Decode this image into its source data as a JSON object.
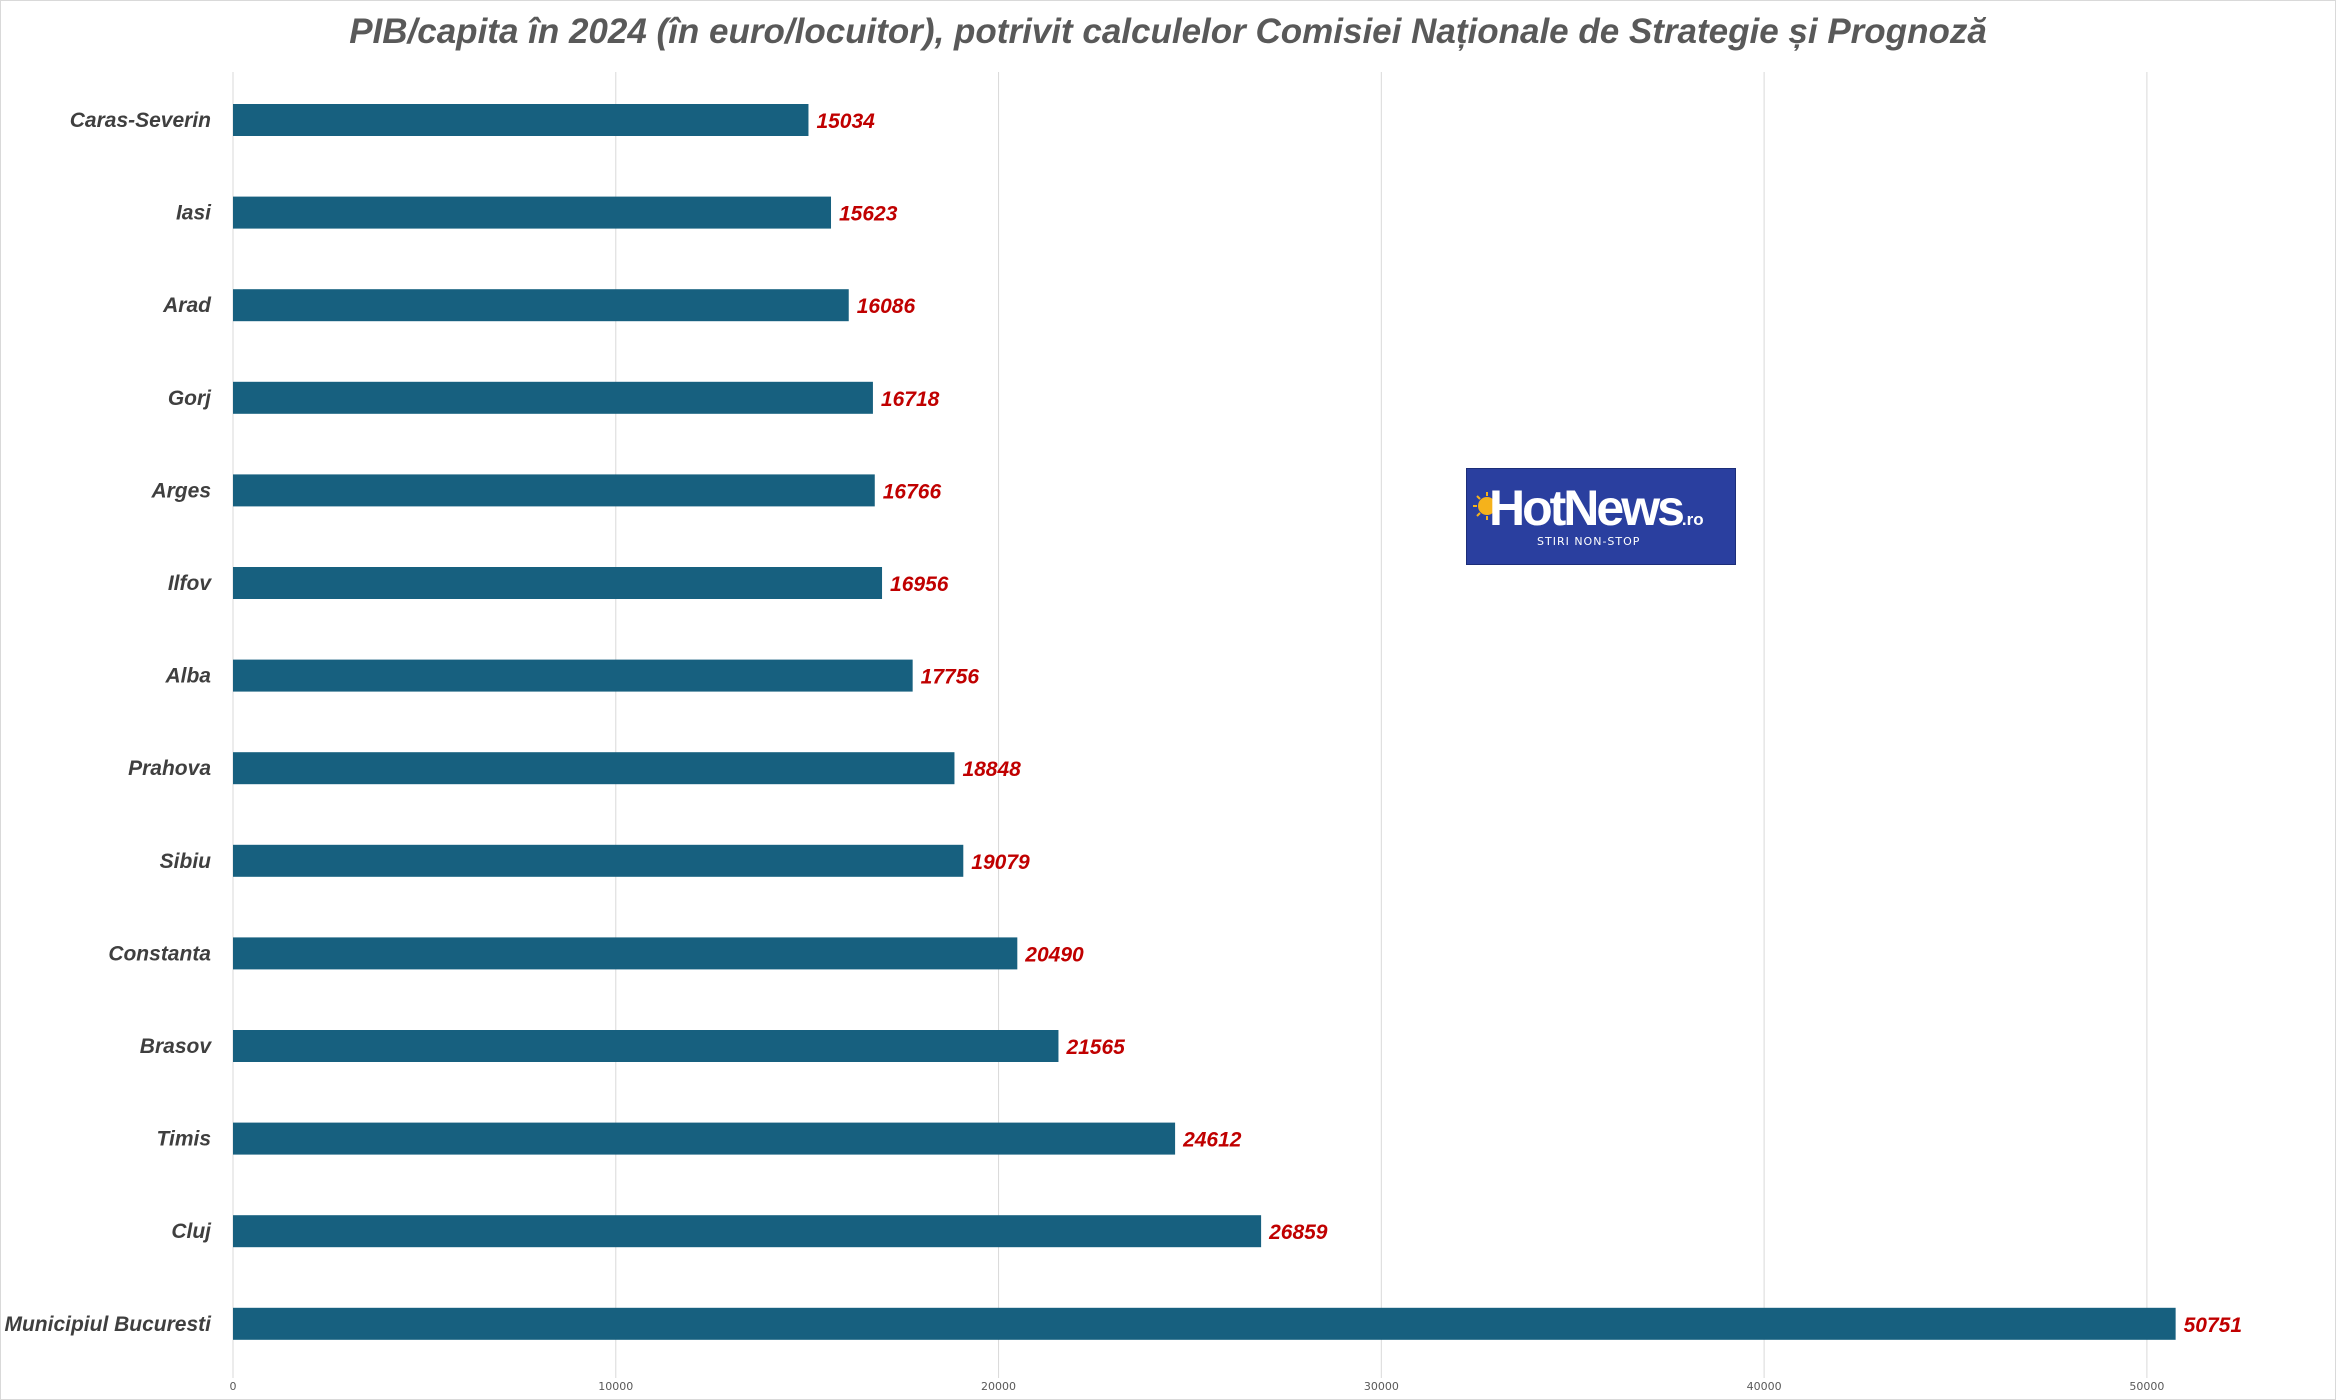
{
  "chart_data": {
    "type": "bar",
    "orientation": "horizontal",
    "title": "PIB/capita în 2024 (în euro/locuitor), potrivit calculelor Comisiei Naționale de Strategie și Prognoză",
    "xlabel": "",
    "ylabel": "",
    "categories": [
      "Caras-Severin",
      "Iasi",
      "Arad",
      "Gorj",
      "Arges",
      "Ilfov",
      "Alba",
      "Prahova",
      "Sibiu",
      "Constanta",
      "Brasov",
      "Timis",
      "Cluj",
      "Municipiul Bucuresti"
    ],
    "values": [
      15034,
      15623,
      16086,
      16718,
      16766,
      16956,
      17756,
      18848,
      19079,
      20490,
      21565,
      24612,
      26859,
      50751
    ],
    "value_labels": [
      "15034",
      "15623",
      "16086",
      "16718",
      "16766",
      "16956",
      "17756",
      "18848",
      "19079",
      "20490",
      "21565",
      "24612",
      "26859",
      "50751"
    ],
    "x_ticks": [
      0,
      10000,
      20000,
      30000,
      40000,
      50000
    ],
    "x_tick_labels": [
      "0",
      "10000",
      "20000",
      "30000",
      "40000",
      "50000"
    ],
    "xlim": [
      0,
      54000
    ],
    "grid": true,
    "bar_color": "#17607f",
    "label_color": "#c00000",
    "gridline_color": "#d9d9d9"
  },
  "logo": {
    "wordmark": "HotNews",
    "tld": ".ro",
    "tagline": "STIRI NON-STOP",
    "background_color": "#2a3f9f",
    "sun_color": "#f5b21b"
  }
}
